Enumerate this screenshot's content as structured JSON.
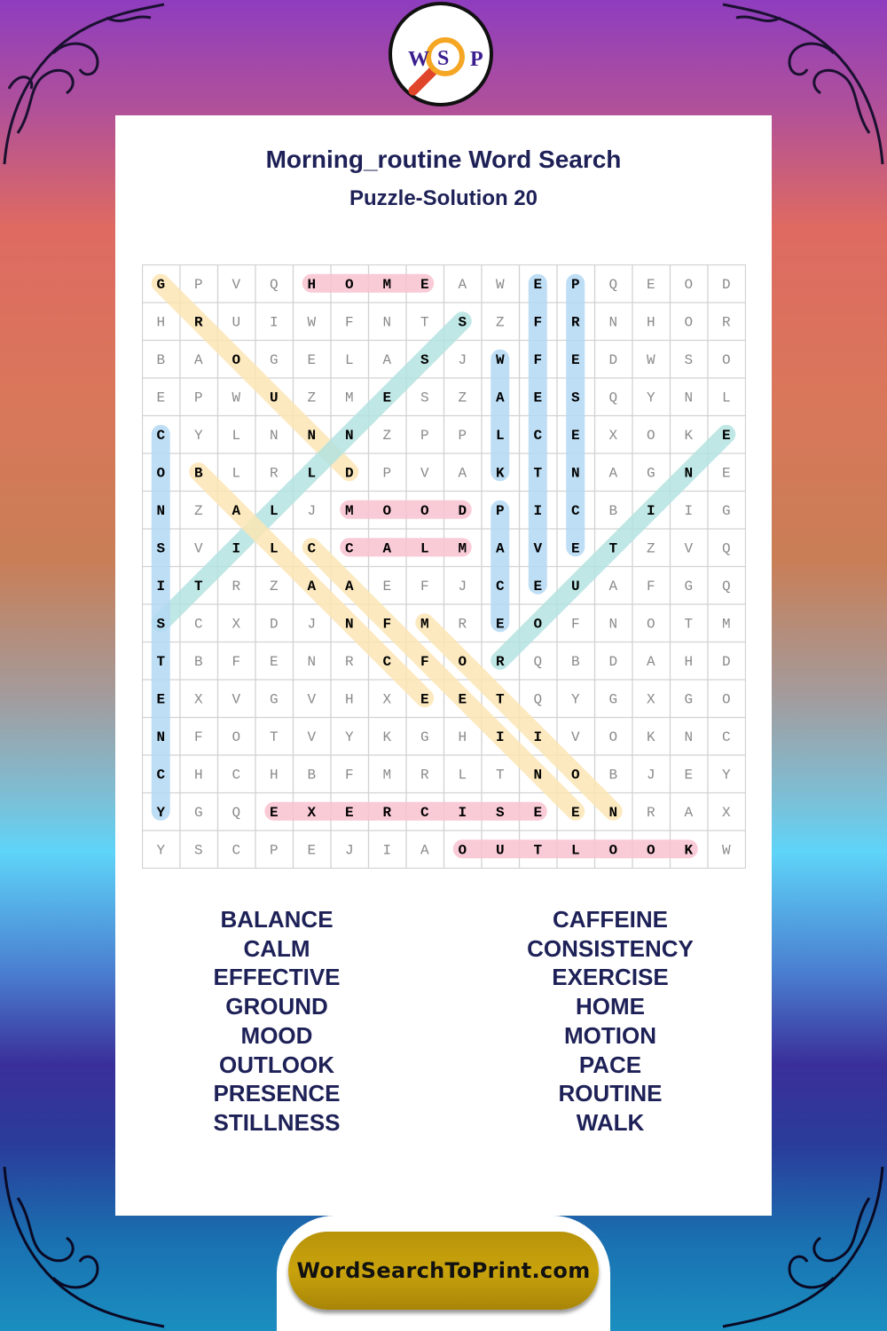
{
  "logo": {
    "letters": [
      "W",
      "S",
      "P"
    ]
  },
  "title": "Morning_routine Word Search",
  "subtitle": "Puzzle-Solution 20",
  "grid": [
    "GPVQHOMEAWEPQEOD",
    "HRUIWFNTSZFRNHOR",
    "BAOGELASJWFEDWSO",
    "EPWUZMESZAESQYNL",
    "CYLNNNZPPLCEXOKE",
    "OBLRLDPVAKTNAGNE",
    "NZALJMOODPICBIIG",
    "SVILCCALMAVETZVQ",
    "ITRZAAEFJCEUAFGQ",
    "SCXDJNFMREOFNOTM",
    "TBFENRCFORQBDAHD",
    "EXVGVHXEETQYGXGO",
    "NFOTVYKGHIIVOKNC",
    "CHCHBFMRLTNOBJEY",
    "YGQEXERCISEENRAX",
    "YSCPEJIAOUTLOOKW"
  ],
  "colors": {
    "pink": "#f8c3d0",
    "yellow": "#fce6b4",
    "blue": "#b3d9f4",
    "teal": "#b3e3e1",
    "text": "#1e2157",
    "pill": "#c49f0c"
  },
  "solutions": [
    {
      "word": "GROUND",
      "start": [
        0,
        0
      ],
      "end": [
        5,
        5
      ],
      "color": "yellow"
    },
    {
      "word": "HOME",
      "start": [
        0,
        4
      ],
      "end": [
        0,
        7
      ],
      "color": "pink"
    },
    {
      "word": "STILLNESS",
      "start": [
        1,
        8
      ],
      "end": [
        9,
        0
      ],
      "color": "teal"
    },
    {
      "word": "CONSISTENCY",
      "start": [
        4,
        0
      ],
      "end": [
        14,
        0
      ],
      "color": "blue"
    },
    {
      "word": "BALANCE",
      "start": [
        5,
        1
      ],
      "end": [
        11,
        7
      ],
      "color": "yellow"
    },
    {
      "word": "MOOD",
      "start": [
        6,
        5
      ],
      "end": [
        6,
        8
      ],
      "color": "pink"
    },
    {
      "word": "CALM",
      "start": [
        7,
        5
      ],
      "end": [
        7,
        8
      ],
      "color": "pink"
    },
    {
      "word": "CAFFEINE",
      "start": [
        7,
        4
      ],
      "end": [
        14,
        11
      ],
      "color": "yellow"
    },
    {
      "word": "MOTION",
      "start": [
        9,
        7
      ],
      "end": [
        14,
        12
      ],
      "color": "yellow"
    },
    {
      "word": "WALK",
      "start": [
        2,
        9
      ],
      "end": [
        5,
        9
      ],
      "color": "blue"
    },
    {
      "word": "PACE",
      "start": [
        6,
        9
      ],
      "end": [
        9,
        9
      ],
      "color": "blue"
    },
    {
      "word": "EFFECTIVE",
      "start": [
        0,
        10
      ],
      "end": [
        8,
        10
      ],
      "color": "blue"
    },
    {
      "word": "PRESENCE",
      "start": [
        0,
        11
      ],
      "end": [
        7,
        11
      ],
      "color": "blue"
    },
    {
      "word": "ROUTINE",
      "start": [
        10,
        9
      ],
      "end": [
        4,
        15
      ],
      "color": "teal"
    },
    {
      "word": "EXERCISE",
      "start": [
        14,
        3
      ],
      "end": [
        14,
        10
      ],
      "color": "pink"
    },
    {
      "word": "OUTLOOK",
      "start": [
        15,
        8
      ],
      "end": [
        15,
        14
      ],
      "color": "pink"
    }
  ],
  "word_list": {
    "left": [
      "BALANCE",
      "CALM",
      "EFFECTIVE",
      "GROUND",
      "MOOD",
      "OUTLOOK",
      "PRESENCE",
      "STILLNESS"
    ],
    "right": [
      "CAFFEINE",
      "CONSISTENCY",
      "EXERCISE",
      "HOME",
      "MOTION",
      "PACE",
      "ROUTINE",
      "WALK"
    ]
  },
  "footer": {
    "site": "WordSearchToPrint.com"
  }
}
